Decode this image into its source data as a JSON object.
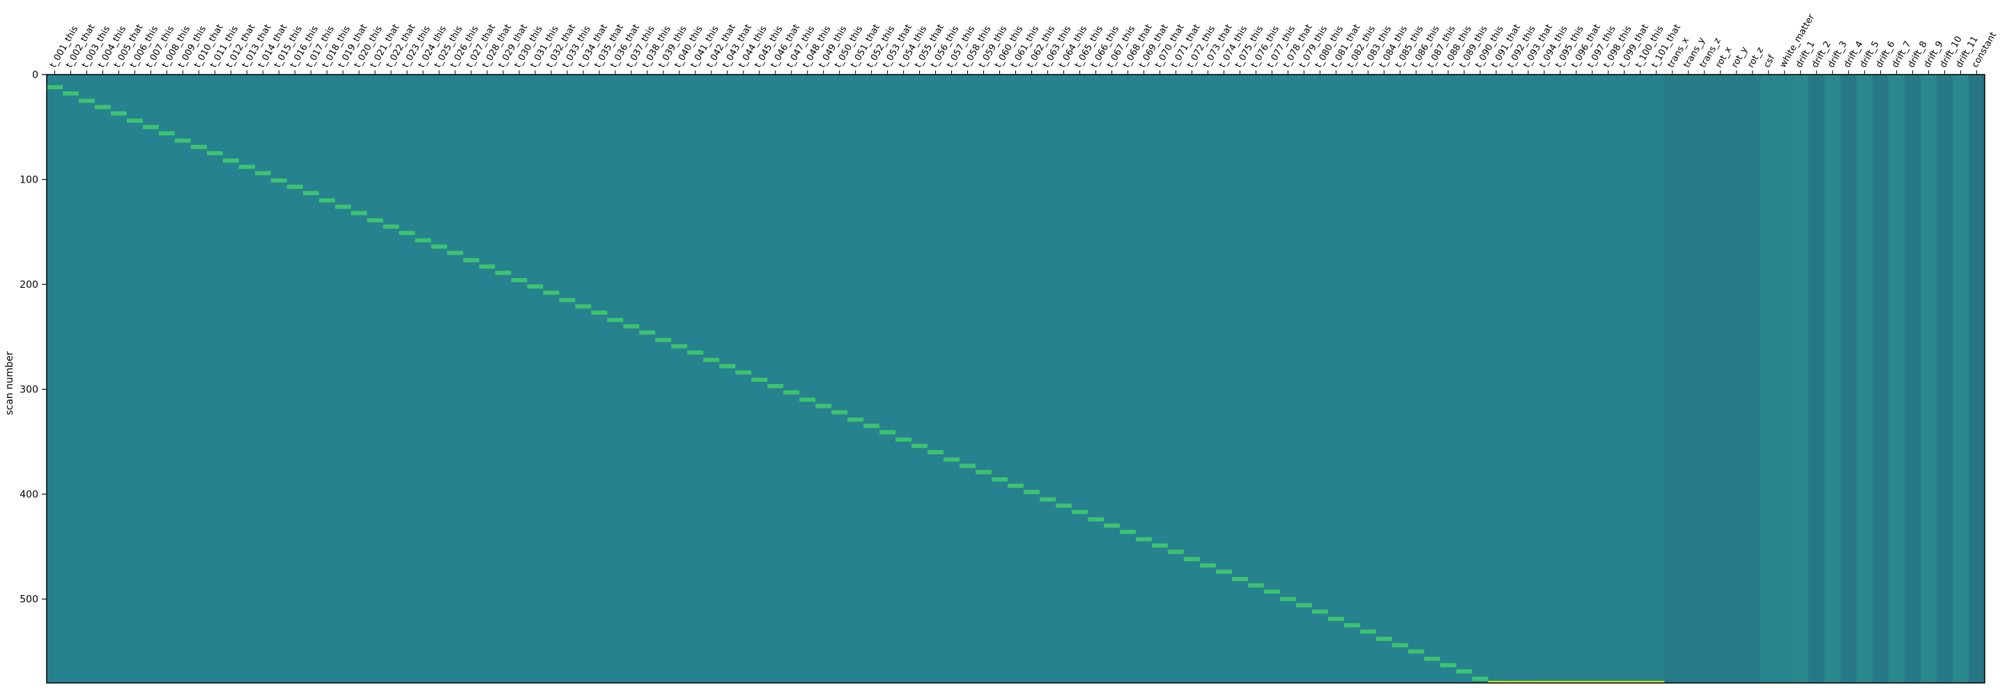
{
  "chart_data": {
    "type": "heatmap",
    "title": "",
    "xlabel": "",
    "ylabel": "scan number",
    "ylim": [
      0,
      580
    ],
    "n_scans": 580,
    "yticks": [
      0,
      100,
      200,
      300,
      400,
      500
    ],
    "grid": false,
    "legend": "none",
    "colormap": "viridis",
    "colors": {
      "background": "#26828e",
      "baseline": "#26828e",
      "event": "#3ec270",
      "event_last": "#c8e020",
      "dark": "#2f2f55",
      "light": "#48b880",
      "drift_mid": "#238a8d",
      "frame": "#000000"
    },
    "columns": [
      "t_001_this",
      "t_002_that",
      "t_003_this",
      "t_004_this",
      "t_005_that",
      "t_006_this",
      "t_007_this",
      "t_008_this",
      "t_009_this",
      "t_010_that",
      "t_011_this",
      "t_012_that",
      "t_013_that",
      "t_014_that",
      "t_015_this",
      "t_016_this",
      "t_017_this",
      "t_018_this",
      "t_019_that",
      "t_020_this",
      "t_021_that",
      "t_022_that",
      "t_023_this",
      "t_024_this",
      "t_025_this",
      "t_026_this",
      "t_027_that",
      "t_028_that",
      "t_029_that",
      "t_030_this",
      "t_031_this",
      "t_032_that",
      "t_033_this",
      "t_034_that",
      "t_035_that",
      "t_036_that",
      "t_037_this",
      "t_038_this",
      "t_039_this",
      "t_040_this",
      "t_041_this",
      "t_042_that",
      "t_043_that",
      "t_044_this",
      "t_045_this",
      "t_046_that",
      "t_047_this",
      "t_048_this",
      "t_049_this",
      "t_050_this",
      "t_051_that",
      "t_052_this",
      "t_053_that",
      "t_054_this",
      "t_055_that",
      "t_056_this",
      "t_057_this",
      "t_058_this",
      "t_059_this",
      "t_060_this",
      "t_061_this",
      "t_062_this",
      "t_063_this",
      "t_064_this",
      "t_065_this",
      "t_066_this",
      "t_067_this",
      "t_068_that",
      "t_069_that",
      "t_070_that",
      "t_071_that",
      "t_072_this",
      "t_073_that",
      "t_074_this",
      "t_075_this",
      "t_076_this",
      "t_077_this",
      "t_078_that",
      "t_079_this",
      "t_080_this",
      "t_081_that",
      "t_082_this",
      "t_083_this",
      "t_084_this",
      "t_085_this",
      "t_086_this",
      "t_087_this",
      "t_088_this",
      "t_089_this",
      "t_090_this",
      "t_091_that",
      "t_092_this",
      "t_093_that",
      "t_094_this",
      "t_095_this",
      "t_096_that",
      "t_097_this",
      "t_098_this",
      "t_099_that",
      "t_100_this",
      "t_101_that",
      "trans_x",
      "trans_y",
      "trans_z",
      "rot_x",
      "rot_y",
      "rot_z",
      "csf",
      "white_matter",
      "drift_1",
      "drift_2",
      "drift_3",
      "drift_4",
      "drift_5",
      "drift_6",
      "drift_7",
      "drift_8",
      "drift_9",
      "drift_10",
      "drift_11",
      "constant"
    ],
    "trial_onsets": [
      10,
      16,
      23,
      29,
      35,
      42,
      48,
      54,
      61,
      67,
      73,
      80,
      86,
      92,
      99,
      105,
      111,
      118,
      124,
      130,
      137,
      143,
      149,
      156,
      162,
      168,
      175,
      181,
      187,
      194,
      200,
      206,
      213,
      219,
      225,
      232,
      238,
      244,
      251,
      257,
      263,
      270,
      276,
      282,
      289,
      295,
      301,
      308,
      314,
      320,
      327,
      333,
      339,
      346,
      352,
      358,
      365,
      371,
      377,
      384,
      390,
      396,
      403,
      409,
      415,
      422,
      428,
      434,
      441,
      447,
      453,
      460,
      466,
      472,
      479,
      485,
      491,
      498,
      504,
      510,
      517,
      523,
      529,
      536,
      542,
      548,
      555,
      561,
      567,
      574,
      580,
      580,
      580,
      580,
      580,
      580,
      580,
      580,
      580,
      580,
      580
    ],
    "trial_duration": 4
  }
}
